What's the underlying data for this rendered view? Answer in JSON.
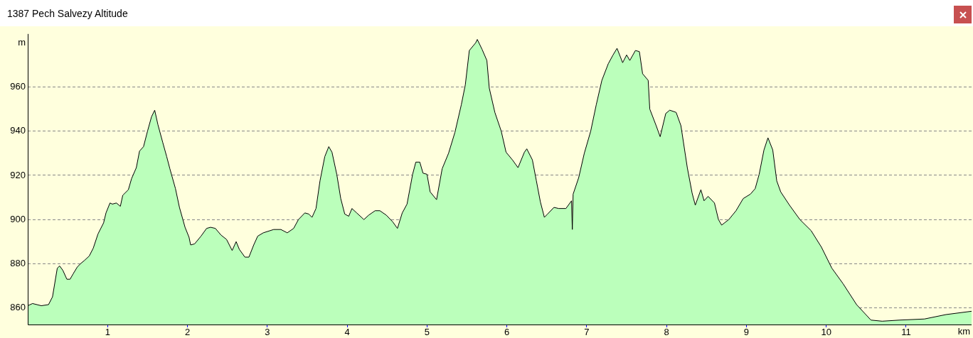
{
  "chart_data": {
    "type": "area",
    "title": "1387 Pech Salvezy Altitude",
    "xlabel": "km",
    "ylabel": "m",
    "xlim": [
      0,
      11.82
    ],
    "xticks": [
      1,
      2,
      3,
      4,
      5,
      6,
      7,
      8,
      9,
      10,
      11
    ],
    "ylim": [
      852.5,
      984
    ],
    "yticks": [
      860,
      880,
      900,
      920,
      940,
      960
    ],
    "grid": "y",
    "marker": "none",
    "series": [
      {
        "color": "#bbffbb",
        "x": [
          0,
          0.06,
          0.17,
          0.26,
          0.31,
          0.37,
          0.4,
          0.44,
          0.49,
          0.53,
          0.57,
          0.62,
          0.66,
          0.71,
          0.77,
          0.82,
          0.88,
          0.95,
          0.98,
          1.03,
          1.06,
          1.11,
          1.16,
          1.19,
          1.26,
          1.3,
          1.36,
          1.4,
          1.45,
          1.5,
          1.55,
          1.59,
          1.63,
          1.69,
          1.74,
          1.78,
          1.85,
          1.9,
          1.97,
          2.02,
          2.04,
          2.09,
          2.17,
          2.24,
          2.29,
          2.35,
          2.42,
          2.49,
          2.56,
          2.61,
          2.65,
          2.72,
          2.77,
          2.83,
          2.88,
          2.95,
          3.08,
          3.17,
          3.25,
          3.33,
          3.39,
          3.47,
          3.52,
          3.56,
          3.61,
          3.66,
          3.72,
          3.77,
          3.81,
          3.87,
          3.92,
          3.97,
          4.02,
          4.06,
          4.12,
          4.21,
          4.27,
          4.35,
          4.41,
          4.49,
          4.57,
          4.63,
          4.69,
          4.75,
          4.82,
          4.86,
          4.91,
          4.95,
          5.0,
          5.04,
          5.12,
          5.19,
          5.27,
          5.35,
          5.43,
          5.48,
          5.53,
          5.61,
          5.63,
          5.69,
          5.75,
          5.78,
          5.85,
          5.93,
          5.99,
          6.07,
          6.14,
          6.22,
          6.25,
          6.32,
          6.37,
          6.42,
          6.47,
          6.51,
          6.59,
          6.65,
          6.74,
          6.81,
          6.82,
          6.83,
          6.9,
          6.97,
          7.05,
          7.12,
          7.19,
          7.27,
          7.33,
          7.38,
          7.45,
          7.5,
          7.54,
          7.61,
          7.66,
          7.7,
          7.77,
          7.79,
          7.87,
          7.92,
          7.99,
          8.04,
          8.12,
          8.18,
          8.26,
          8.32,
          8.36,
          8.43,
          8.47,
          8.52,
          8.6,
          8.65,
          8.69,
          8.78,
          8.87,
          8.96,
          9.05,
          9.11,
          9.16,
          9.22,
          9.27,
          9.33,
          9.38,
          9.43,
          9.54,
          9.67,
          9.81,
          9.94,
          10.07,
          10.21,
          10.38,
          10.56,
          10.7,
          10.92,
          11.23,
          11.5,
          11.82
        ],
        "values": [
          861,
          862,
          861,
          861.5,
          865,
          878,
          879,
          877,
          873,
          873,
          875.5,
          878.5,
          880,
          881.5,
          883.5,
          887,
          893.5,
          898.5,
          903,
          907.5,
          907,
          907.5,
          906,
          911,
          913.5,
          918.5,
          923.5,
          931,
          933,
          940,
          946.5,
          949.5,
          943,
          935,
          928.5,
          923,
          914,
          905.5,
          896.5,
          892,
          888.5,
          889,
          892.5,
          896,
          896.5,
          896,
          893,
          891,
          886,
          890,
          886.5,
          883,
          883,
          888.5,
          892.5,
          894,
          895.5,
          895.5,
          894,
          896,
          900,
          903,
          902.5,
          901,
          905,
          917.5,
          928.5,
          933,
          930.5,
          920.5,
          909.5,
          902.5,
          901.5,
          905,
          903,
          900,
          902,
          904,
          904,
          902,
          899,
          896,
          903,
          907,
          920.5,
          926,
          926,
          921,
          920.5,
          912.5,
          909,
          923,
          930,
          939.5,
          952,
          961,
          976.5,
          980,
          981.5,
          977,
          972,
          959.5,
          948.5,
          940,
          930.5,
          927,
          923.5,
          930.5,
          932,
          927,
          917.5,
          908,
          901,
          902.5,
          905.5,
          905,
          905,
          908.5,
          895.5,
          911.5,
          919,
          930,
          940,
          952,
          963,
          970.5,
          974.5,
          977.5,
          971,
          974.5,
          972,
          976.5,
          976,
          966,
          963,
          950,
          942.5,
          937.5,
          948,
          949.5,
          948.5,
          942.5,
          923.5,
          912,
          906.5,
          913.5,
          908.5,
          910.5,
          907.5,
          900,
          897.5,
          900,
          904,
          909.5,
          911.5,
          914,
          920.5,
          931.5,
          937,
          931.5,
          917.5,
          912.5,
          906.5,
          900,
          895,
          887.5,
          878,
          871,
          861.5,
          854.5,
          854,
          854.5,
          855,
          857,
          858.5
        ]
      }
    ]
  }
}
